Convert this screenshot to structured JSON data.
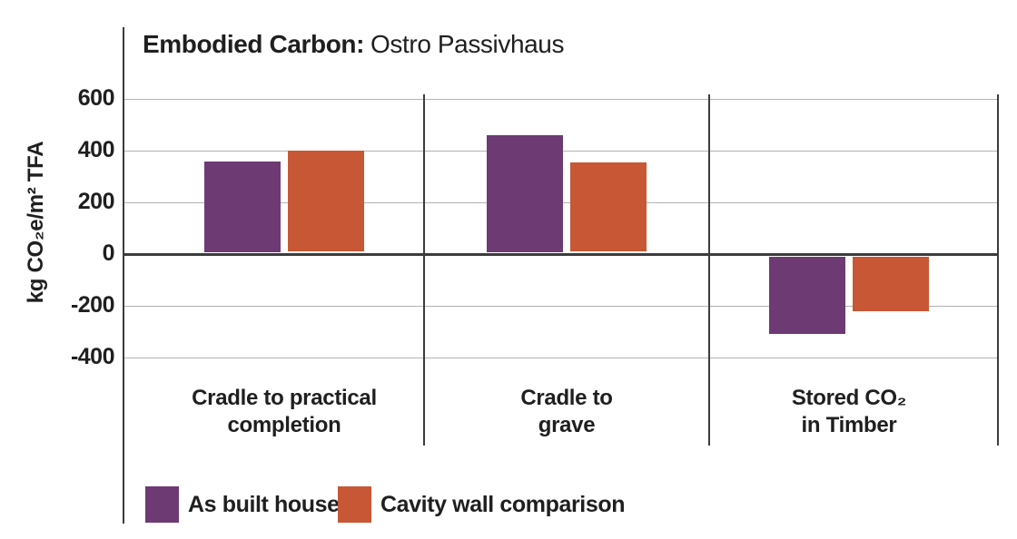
{
  "title": {
    "bold": "Embodied Carbon:",
    "regular": "Ostro Passivhaus"
  },
  "y_axis": {
    "label": "kg CO₂e/m² TFA",
    "ticks": [
      "600",
      "400",
      "200",
      "0",
      "-200",
      "-400"
    ]
  },
  "categories_display": [
    {
      "lines": [
        "Cradle to practical",
        "completion"
      ]
    },
    {
      "lines": [
        "Cradle to",
        "grave"
      ]
    },
    {
      "lines": [
        "Stored CO₂",
        "in Timber"
      ]
    }
  ],
  "legend": [
    {
      "label": "As built house",
      "color": "#6d3a73"
    },
    {
      "label": "Cavity wall comparison",
      "color": "#c75735"
    }
  ],
  "colors": {
    "as_built": "#6d3a73",
    "cavity_wall": "#c75735",
    "grid": "#b3b3b3",
    "axis": "#3c3c3c",
    "text": "#1f1f1f"
  },
  "chart_data": {
    "type": "bar",
    "title": "Embodied Carbon: Ostro Passivhaus",
    "xlabel": "",
    "ylabel": "kg CO₂e/m² TFA",
    "categories": [
      "Cradle to practical completion",
      "Cradle to grave",
      "Stored CO₂ in Timber"
    ],
    "series": [
      {
        "name": "As built house",
        "color": "#6d3a73",
        "values": [
          350,
          450,
          -310
        ]
      },
      {
        "name": "Cavity wall comparison",
        "color": "#c75735",
        "values": [
          390,
          345,
          -220
        ]
      }
    ],
    "ylim": [
      -400,
      600
    ],
    "ytick_interval": 200,
    "grid": true,
    "legend_position": "bottom"
  }
}
